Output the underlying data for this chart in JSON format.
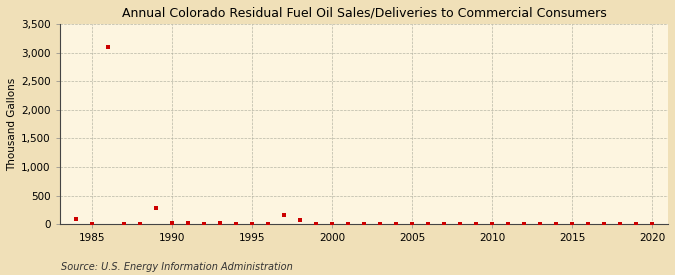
{
  "title": "Annual Colorado Residual Fuel Oil Sales/Deliveries to Commercial Consumers",
  "ylabel": "Thousand Gallons",
  "source": "Source: U.S. Energy Information Administration",
  "background_color": "#f0e0b8",
  "plot_background_color": "#fdf5e0",
  "data_color": "#cc0000",
  "xlim": [
    1983,
    2021
  ],
  "ylim": [
    0,
    3500
  ],
  "yticks": [
    0,
    500,
    1000,
    1500,
    2000,
    2500,
    3000,
    3500
  ],
  "ytick_labels": [
    "0",
    "500",
    "1,000",
    "1,500",
    "2,000",
    "2,500",
    "3,000",
    "3,500"
  ],
  "xticks": [
    1985,
    1990,
    1995,
    2000,
    2005,
    2010,
    2015,
    2020
  ],
  "years": [
    1984,
    1985,
    1986,
    1987,
    1988,
    1989,
    1990,
    1991,
    1992,
    1993,
    1994,
    1995,
    1996,
    1997,
    1998,
    1999,
    2000,
    2001,
    2002,
    2003,
    2004,
    2005,
    2006,
    2007,
    2008,
    2009,
    2010,
    2011,
    2012,
    2013,
    2014,
    2015,
    2016,
    2017,
    2018,
    2019,
    2020
  ],
  "values": [
    100,
    5,
    3100,
    8,
    10,
    280,
    20,
    15,
    12,
    18,
    8,
    6,
    8,
    160,
    70,
    4,
    4,
    4,
    4,
    4,
    4,
    4,
    4,
    4,
    4,
    4,
    4,
    4,
    4,
    4,
    4,
    8,
    4,
    4,
    4,
    4,
    4
  ]
}
